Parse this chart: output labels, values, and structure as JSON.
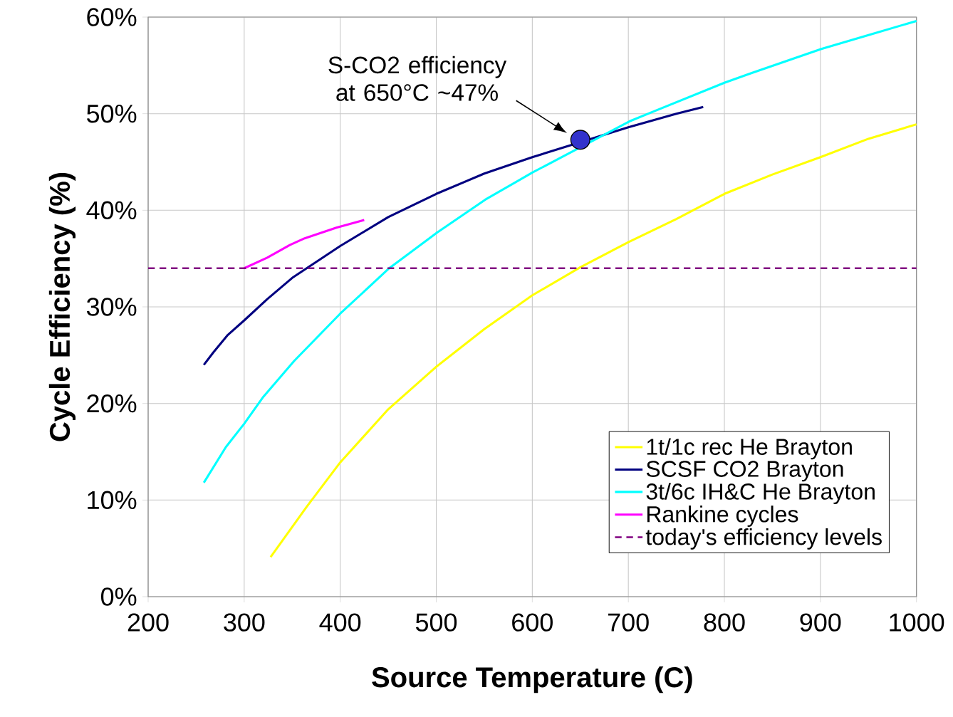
{
  "chart_data": {
    "type": "line",
    "xlabel": "Source Temperature (C)",
    "ylabel": "Cycle Efficiency (%)",
    "xlim": [
      200,
      1000
    ],
    "ylim": [
      0,
      60
    ],
    "xticks": [
      200,
      300,
      400,
      500,
      600,
      700,
      800,
      900,
      1000
    ],
    "yticks": [
      {
        "value": 0,
        "label": "0%"
      },
      {
        "value": 10,
        "label": "10%"
      },
      {
        "value": 20,
        "label": "20%"
      },
      {
        "value": 30,
        "label": "30%"
      },
      {
        "value": 40,
        "label": "40%"
      },
      {
        "value": 50,
        "label": "50%"
      },
      {
        "value": 60,
        "label": "60%"
      }
    ],
    "grid": true,
    "legend": "bottom right",
    "line_style": "solid",
    "series": [
      {
        "name": "1t/1c rec He Brayton",
        "color": "#ffff00",
        "x": [
          327.5,
          365,
          400,
          450,
          500,
          550,
          600,
          650,
          700,
          750,
          800,
          850,
          900,
          950,
          1000
        ],
        "values": [
          4.1,
          9.3,
          13.9,
          19.4,
          23.8,
          27.7,
          31.2,
          34.1,
          36.7,
          39.1,
          41.7,
          43.7,
          45.5,
          47.4,
          48.9
        ]
      },
      {
        "name": "SCSF CO2 Brayton",
        "color": "#000080",
        "x": [
          258,
          268,
          283,
          300,
          324,
          350,
          400,
          450,
          500,
          550,
          600,
          700,
          750,
          778
        ],
        "values": [
          24.0,
          25.3,
          27.1,
          28.6,
          30.8,
          33.0,
          36.3,
          39.3,
          41.7,
          43.8,
          45.5,
          48.6,
          50.0,
          50.7
        ]
      },
      {
        "name": "3t/6c IH&C He Brayton",
        "color": "#00ffff",
        "x": [
          258,
          281,
          300,
          320,
          352,
          400,
          451,
          501,
          551,
          600,
          701,
          728,
          800,
          828,
          901,
          952,
          1000
        ],
        "values": [
          11.8,
          15.5,
          17.9,
          20.7,
          24.4,
          29.3,
          34.0,
          37.7,
          41.1,
          43.9,
          49.2,
          50.3,
          53.2,
          54.2,
          56.7,
          58.2,
          59.6
        ]
      },
      {
        "name": "Rankine cycles",
        "color": "#ff00ff",
        "x": [
          300,
          324,
          347.5,
          363,
          396,
          425
        ],
        "values": [
          34.0,
          35.1,
          36.4,
          37.1,
          38.2,
          39.0
        ]
      },
      {
        "type": "scatter",
        "color": "#3333cc",
        "x": [
          650
        ],
        "values": [
          47.3
        ]
      }
    ],
    "ref_lines": [
      {
        "axis": "y",
        "value": 34,
        "label": "today's efficiency levels",
        "color": "#800080",
        "line_style": "dashed"
      }
    ],
    "annotations": [
      "S-CO2 efficiency at 650°C ~47%"
    ]
  }
}
